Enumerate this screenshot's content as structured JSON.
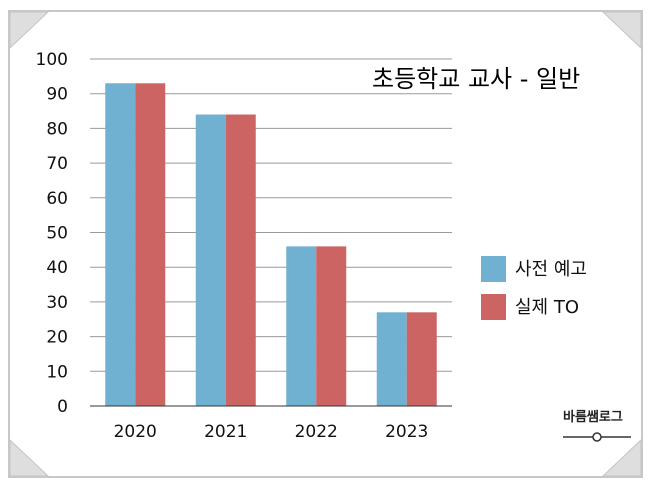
{
  "chart_data": {
    "type": "bar",
    "title": "초등학교 교사 - 일반",
    "categories": [
      "2020",
      "2021",
      "2022",
      "2023"
    ],
    "series": [
      {
        "name": "사전 예고",
        "color": "#70b0d0",
        "values": [
          93,
          84,
          46,
          27
        ]
      },
      {
        "name": "실제 TO",
        "color": "#cd6464",
        "values": [
          93,
          84,
          46,
          27
        ]
      }
    ],
    "yticks": [
      "0",
      "10",
      "20",
      "30",
      "40",
      "50",
      "60",
      "70",
      "80",
      "90",
      "100"
    ],
    "ylim": [
      0,
      100
    ],
    "grid": true,
    "legend": "right"
  },
  "watermark": {
    "text": "바름쌤로그"
  }
}
